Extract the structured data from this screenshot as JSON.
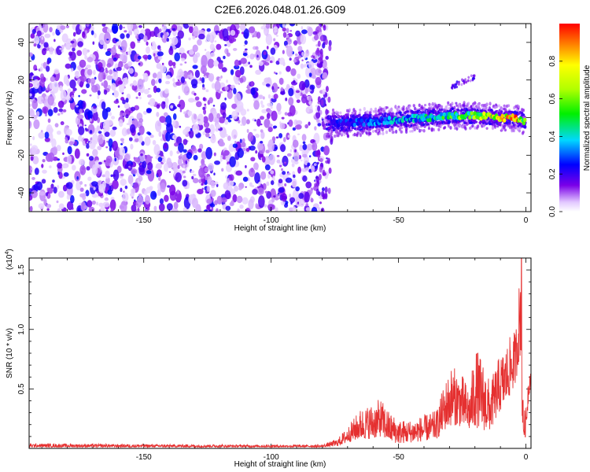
{
  "title": "C2E6.2026.048.01.26.G09",
  "chart_data": [
    {
      "type": "heatmap",
      "xlabel": "Height of straight line (km)",
      "ylabel": "Frequency (Hz)",
      "xlim": [
        -195,
        2
      ],
      "ylim": [
        -50,
        50
      ],
      "x_ticks": [
        -150,
        -100,
        -50,
        0
      ],
      "x_tick_labels": [
        "-150",
        "-100",
        "-50",
        "0"
      ],
      "y_ticks": [
        -40,
        -20,
        0,
        20,
        40
      ],
      "y_tick_labels": [
        "-40",
        "-20",
        "0",
        "20",
        "40"
      ],
      "colorbar": {
        "label": "Normalized spectral amplitude",
        "range": [
          0,
          1
        ],
        "ticks": [
          0.0,
          0.2,
          0.4,
          0.6,
          0.8
        ],
        "tick_labels": [
          "0.0",
          "0.2",
          "0.4",
          "0.6",
          "0.8"
        ]
      },
      "noise_region": {
        "x_range": [
          -195,
          -78
        ],
        "freq_range": [
          -50,
          50
        ],
        "amplitude": "0.05-0.3"
      },
      "signal_band": [
        {
          "x": -78,
          "freq": -3,
          "amplitude": 0.2
        },
        {
          "x": -70,
          "freq": -3,
          "amplitude": 0.3
        },
        {
          "x": -60,
          "freq": -2,
          "amplitude": 0.35
        },
        {
          "x": -50,
          "freq": -1,
          "amplitude": 0.4
        },
        {
          "x": -40,
          "freq": 0,
          "amplitude": 0.45
        },
        {
          "x": -30,
          "freq": 1,
          "amplitude": 0.55
        },
        {
          "x": -20,
          "freq": 1,
          "amplitude": 0.7
        },
        {
          "x": -10,
          "freq": 0,
          "amplitude": 0.9
        },
        {
          "x": -5,
          "freq": 0,
          "amplitude": 1.0
        },
        {
          "x": 0,
          "freq": -2,
          "amplitude": 0.6
        }
      ],
      "secondary_feature": {
        "x_range": [
          -30,
          -20
        ],
        "freq": [
          20,
          22
        ],
        "amplitude": 0.3
      }
    },
    {
      "type": "line",
      "xlabel": "Height of straight line (km)",
      "ylabel": "SNR (10 * v/v)",
      "y_scale_label": "(x10",
      "y_scale_exponent": "4",
      "y_scale_suffix": ")",
      "xlim": [
        -195,
        2
      ],
      "ylim": [
        0,
        1.6
      ],
      "x_ticks": [
        -150,
        -100,
        -50,
        0
      ],
      "x_tick_labels": [
        "-150",
        "-100",
        "-50",
        "0"
      ],
      "y_ticks": [
        0.5,
        1.0,
        1.5
      ],
      "y_tick_labels": [
        "0.5",
        "1.0",
        "1.5"
      ],
      "series": [
        {
          "name": "SNR",
          "color": "#e53030",
          "envelope": [
            {
              "x": -195,
              "low": 0.01,
              "high": 0.04
            },
            {
              "x": -150,
              "low": 0.01,
              "high": 0.035
            },
            {
              "x": -100,
              "low": 0.01,
              "high": 0.03
            },
            {
              "x": -80,
              "low": 0.01,
              "high": 0.03
            },
            {
              "x": -74,
              "low": 0.02,
              "high": 0.08
            },
            {
              "x": -70,
              "low": 0.05,
              "high": 0.18
            },
            {
              "x": -65,
              "low": 0.08,
              "high": 0.33
            },
            {
              "x": -60,
              "low": 0.08,
              "high": 0.38
            },
            {
              "x": -57,
              "low": 0.1,
              "high": 0.42
            },
            {
              "x": -54,
              "low": 0.06,
              "high": 0.32
            },
            {
              "x": -50,
              "low": 0.04,
              "high": 0.24
            },
            {
              "x": -45,
              "low": 0.05,
              "high": 0.24
            },
            {
              "x": -40,
              "low": 0.06,
              "high": 0.28
            },
            {
              "x": -35,
              "low": 0.08,
              "high": 0.32
            },
            {
              "x": -32,
              "low": 0.15,
              "high": 0.55
            },
            {
              "x": -29,
              "low": 0.2,
              "high": 0.7
            },
            {
              "x": -25,
              "low": 0.18,
              "high": 0.62
            },
            {
              "x": -22,
              "low": 0.15,
              "high": 0.5
            },
            {
              "x": -20,
              "low": 0.18,
              "high": 0.86
            },
            {
              "x": -17,
              "low": 0.15,
              "high": 0.75
            },
            {
              "x": -14,
              "low": 0.15,
              "high": 0.55
            },
            {
              "x": -11,
              "low": 0.28,
              "high": 0.75
            },
            {
              "x": -8,
              "low": 0.38,
              "high": 0.85
            },
            {
              "x": -6,
              "low": 0.45,
              "high": 0.95
            },
            {
              "x": -4,
              "low": 0.55,
              "high": 1.0
            },
            {
              "x": -3,
              "low": 0.7,
              "high": 1.3
            },
            {
              "x": -2,
              "low": 0.8,
              "high": 1.6
            },
            {
              "x": -1.5,
              "low": 0.2,
              "high": 0.9
            },
            {
              "x": -1,
              "low": 0.08,
              "high": 0.3
            },
            {
              "x": 0,
              "low": 0.1,
              "high": 0.35
            },
            {
              "x": 1,
              "low": 0.4,
              "high": 0.65
            },
            {
              "x": 2,
              "low": 0.55,
              "high": 0.68
            }
          ]
        }
      ]
    }
  ]
}
